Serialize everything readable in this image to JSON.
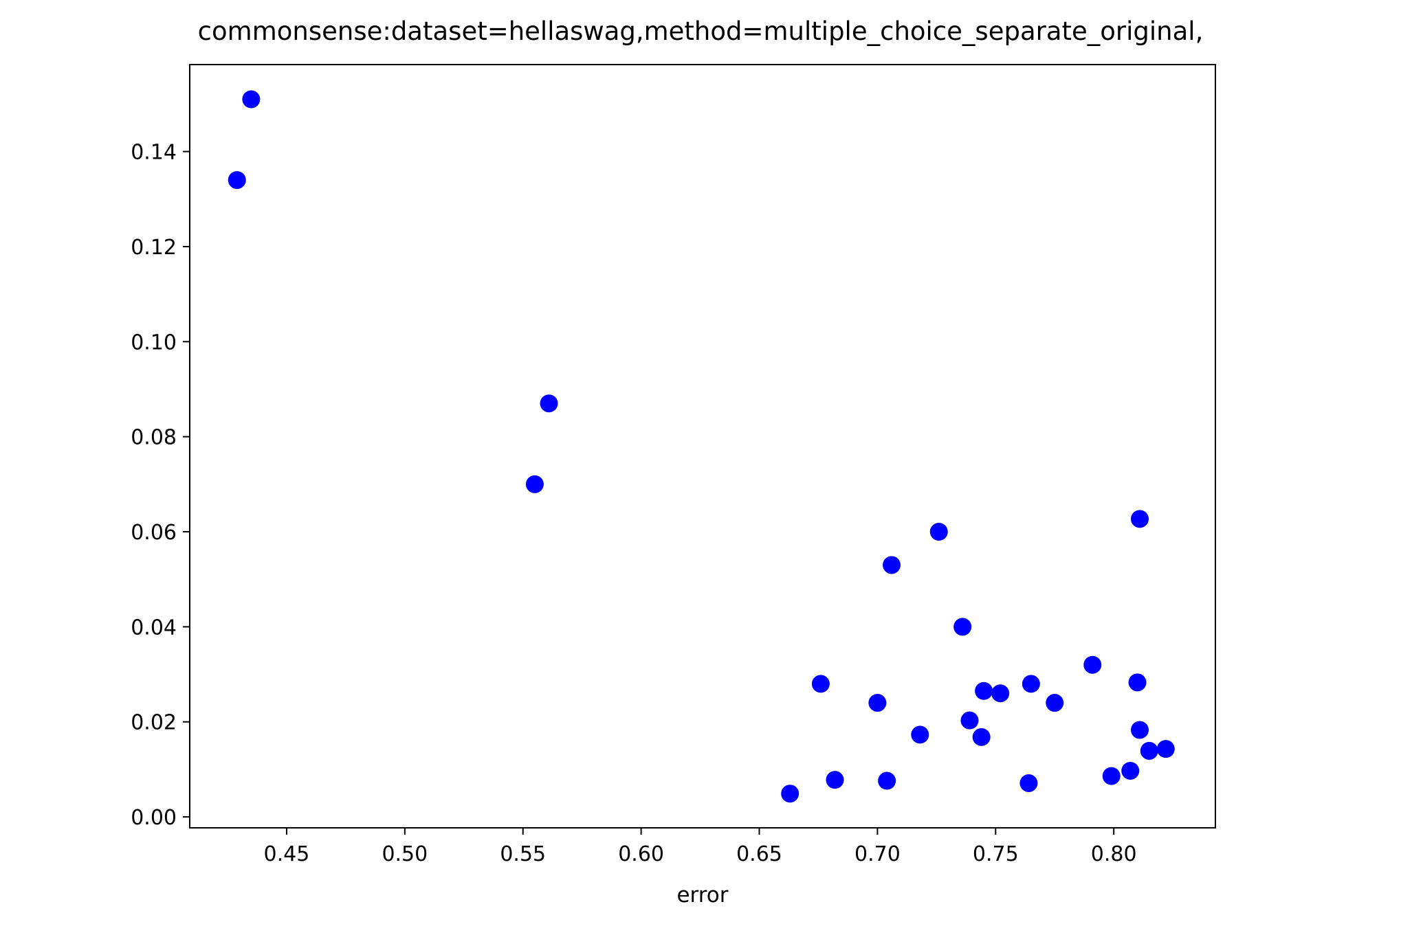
{
  "chart_data": {
    "type": "scatter",
    "title": "commonsense:dataset=hellaswag,method=multiple_choice_separate_original,",
    "xlabel": "error",
    "ylabel": "",
    "xlim": [
      0.409,
      0.843
    ],
    "ylim": [
      -0.0023,
      0.1583
    ],
    "xticks": [
      0.45,
      0.5,
      0.55,
      0.6,
      0.65,
      0.7,
      0.75,
      0.8
    ],
    "xtick_labels": [
      "0.45",
      "0.50",
      "0.55",
      "0.60",
      "0.65",
      "0.70",
      "0.75",
      "0.80"
    ],
    "yticks": [
      0.0,
      0.02,
      0.04,
      0.06,
      0.08,
      0.1,
      0.12,
      0.14
    ],
    "ytick_labels": [
      "0.00",
      "0.02",
      "0.04",
      "0.06",
      "0.08",
      "0.10",
      "0.12",
      "0.14"
    ],
    "grid": false,
    "legend": "none",
    "marker_color": "#0000ff",
    "series": [
      {
        "points": [
          [
            0.435,
            0.151
          ],
          [
            0.429,
            0.134
          ],
          [
            0.561,
            0.087
          ],
          [
            0.555,
            0.07
          ],
          [
            0.726,
            0.06
          ],
          [
            0.811,
            0.0627
          ],
          [
            0.706,
            0.053
          ],
          [
            0.736,
            0.04
          ],
          [
            0.791,
            0.032
          ],
          [
            0.676,
            0.028
          ],
          [
            0.81,
            0.0283
          ],
          [
            0.765,
            0.028
          ],
          [
            0.745,
            0.0265
          ],
          [
            0.752,
            0.026
          ],
          [
            0.7,
            0.024
          ],
          [
            0.775,
            0.024
          ],
          [
            0.739,
            0.0203
          ],
          [
            0.811,
            0.0183
          ],
          [
            0.718,
            0.0173
          ],
          [
            0.744,
            0.0168
          ],
          [
            0.822,
            0.0143
          ],
          [
            0.815,
            0.0139
          ],
          [
            0.807,
            0.0097
          ],
          [
            0.799,
            0.0086
          ],
          [
            0.682,
            0.0078
          ],
          [
            0.704,
            0.0076
          ],
          [
            0.764,
            0.0071
          ],
          [
            0.663,
            0.0049
          ]
        ]
      }
    ]
  }
}
